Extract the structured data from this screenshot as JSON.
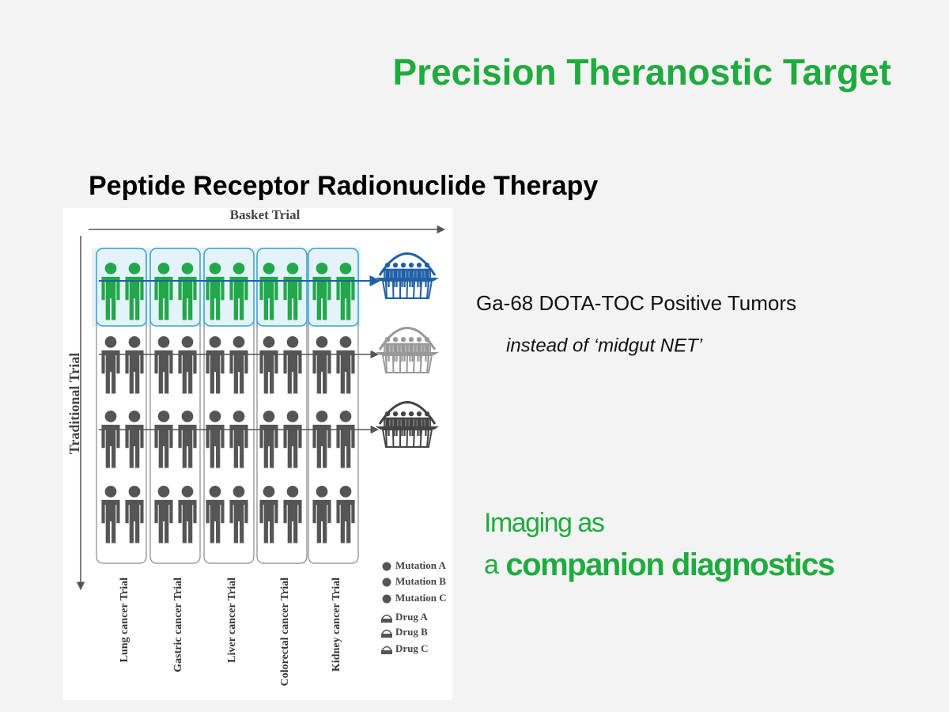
{
  "header": {
    "title": "Precision Theranostic Target",
    "subtitle": "Peptide Receptor Radionuclide Therapy"
  },
  "diagram": {
    "x_axis": "Basket Trial",
    "y_axis": "Traditional Trial",
    "trials": [
      "Lung cancer Trial",
      "Gastric cancer Trial",
      "Liver cancer Trial",
      "Colorectal cancer Trial",
      "Kidney cancer Trial"
    ],
    "legend": [
      "Mutation A",
      "Mutation B",
      "Mutation C",
      "Drug A",
      "Drug B",
      "Drug C"
    ]
  },
  "notes": {
    "line1": "Ga-68 DOTA-TOC Positive Tumors",
    "line2": "instead of ‘midgut NET’"
  },
  "callout": {
    "line1": "Imaging as",
    "line2_prefix": "a",
    "line2_emphasis": "companion diagnostics"
  }
}
